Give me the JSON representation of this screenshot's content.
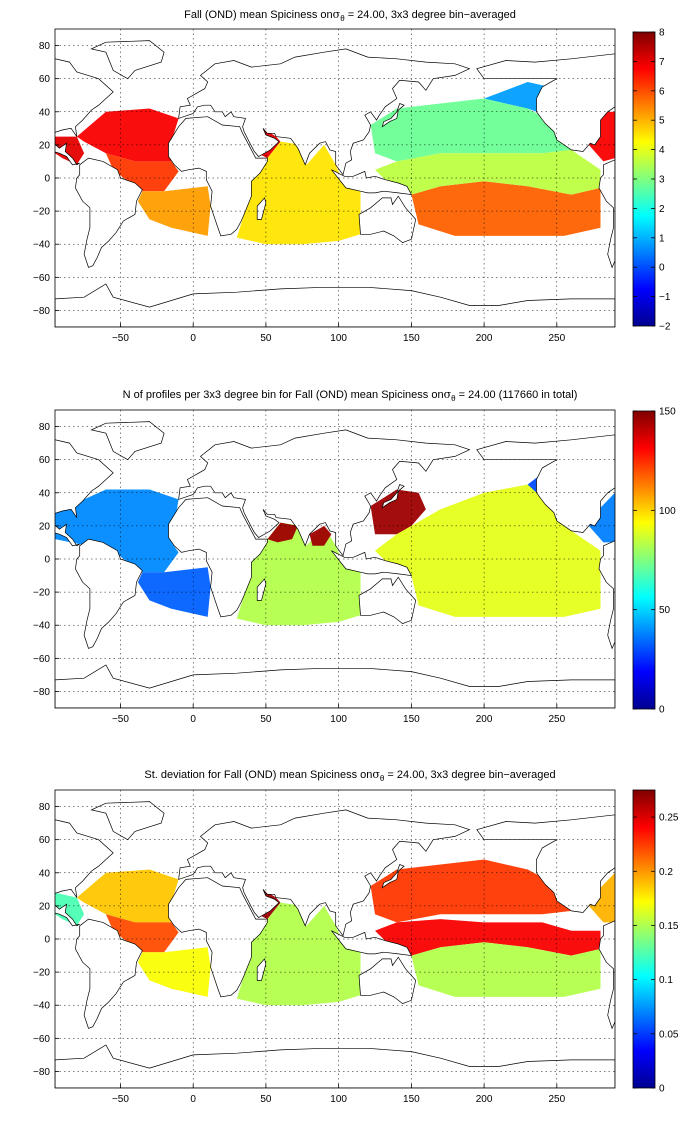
{
  "figure": {
    "panels": [
      {
        "title_main": "Fall (OND) mean Spiciness on",
        "title_sym": "σ",
        "title_sub": "θ",
        "title_rest": " = 24.00, 3x3 degree bin−averaged",
        "colorbar": {
          "ticks": [
            "8",
            "7",
            "6",
            "5",
            "4",
            "3",
            "2",
            "1",
            "0",
            "−1",
            "−2"
          ]
        }
      },
      {
        "title_main": "N of profiles per 3x3 degree bin for Fall (OND) mean Spiciness on",
        "title_sym": "σ",
        "title_sub": "θ",
        "title_rest": " = 24.00 (117660 in total)",
        "colorbar": {
          "ticks": [
            "150",
            "100",
            "50",
            "0"
          ]
        }
      },
      {
        "title_main": "St. deviation for Fall (OND) mean Spiciness on",
        "title_sym": "σ",
        "title_sub": "θ",
        "title_rest": " = 24.00, 3x3 degree bin−averaged",
        "colorbar": {
          "ticks": [
            "0.25",
            "0.2",
            "0.15",
            "0.1",
            "0.05",
            "0"
          ]
        }
      }
    ],
    "axes": {
      "xticks": [
        "−50",
        "0",
        "50",
        "100",
        "150",
        "200",
        "250"
      ],
      "yticks": [
        "80",
        "60",
        "40",
        "20",
        "0",
        "−20",
        "−40",
        "−60",
        "−80"
      ]
    }
  },
  "chart_data": [
    {
      "type": "heatmap",
      "title": "Fall (OND) mean Spiciness on σθ = 24.00, 3x3 degree bin−averaged",
      "xlim": [
        -95,
        290
      ],
      "ylim": [
        -90,
        90
      ],
      "x_ticks": [
        -50,
        0,
        50,
        100,
        150,
        200,
        250
      ],
      "y_ticks": [
        -80,
        -60,
        -40,
        -20,
        0,
        20,
        40,
        60,
        80
      ],
      "grid": true,
      "colorbar": {
        "min": -2,
        "max": 8,
        "ticks": [
          8,
          7,
          6,
          5,
          4,
          3,
          2,
          1,
          0,
          -1,
          -2
        ],
        "colormap": "jet"
      },
      "regions": [
        {
          "region": "subtropical North Atlantic",
          "value": 7.0
        },
        {
          "region": "tropical Atlantic",
          "value": 6.0
        },
        {
          "region": "Red Sea / Arabian Sea",
          "value": 7.0
        },
        {
          "region": "Indian Ocean",
          "value": 4.5
        },
        {
          "region": "western tropical Pacific",
          "value": 4.0
        },
        {
          "region": "North Pacific subtropical",
          "value": 3.0
        },
        {
          "region": "northeast Pacific",
          "value": 0.0
        },
        {
          "region": "South Pacific subtropical",
          "value": 6.5
        },
        {
          "region": "southeast Atlantic",
          "value": 4.5
        }
      ]
    },
    {
      "type": "heatmap",
      "title": "N of profiles per 3x3 degree bin for Fall (OND) mean Spiciness on σθ = 24.00 (117660 in total)",
      "xlim": [
        -95,
        290
      ],
      "ylim": [
        -90,
        90
      ],
      "x_ticks": [
        -50,
        0,
        50,
        100,
        150,
        200,
        250
      ],
      "y_ticks": [
        -80,
        -60,
        -40,
        -20,
        0,
        20,
        40,
        60,
        80
      ],
      "grid": true,
      "colorbar": {
        "min": 0,
        "max": 150,
        "ticks": [
          150,
          100,
          50,
          0
        ],
        "colormap": "jet"
      },
      "total": 117660,
      "regions": [
        {
          "region": "Atlantic",
          "value": 40
        },
        {
          "region": "Arabian Sea / Bay of Bengal",
          "value": 150
        },
        {
          "region": "Indian Ocean",
          "value": 80
        },
        {
          "region": "western North Pacific",
          "value": 150
        },
        {
          "region": "tropical Pacific",
          "value": 90
        },
        {
          "region": "Pacific margins",
          "value": 15
        }
      ]
    },
    {
      "type": "heatmap",
      "title": "St. deviation for Fall (OND) mean Spiciness on σθ = 24.00, 3x3 degree bin−averaged",
      "xlim": [
        -95,
        290
      ],
      "ylim": [
        -90,
        90
      ],
      "x_ticks": [
        -50,
        0,
        50,
        100,
        150,
        200,
        250
      ],
      "y_ticks": [
        -80,
        -60,
        -40,
        -20,
        0,
        20,
        40,
        60,
        80
      ],
      "grid": true,
      "colorbar": {
        "min": 0,
        "max": 0.275,
        "ticks": [
          0.25,
          0.2,
          0.15,
          0.1,
          0.05,
          0
        ],
        "colormap": "jet"
      },
      "regions": [
        {
          "region": "North Atlantic",
          "value": 0.2
        },
        {
          "region": "tropical Atlantic",
          "value": 0.22
        },
        {
          "region": "Red Sea / Arabian Sea",
          "value": 0.27
        },
        {
          "region": "Indian Ocean",
          "value": 0.17
        },
        {
          "region": "North Pacific",
          "value": 0.25
        },
        {
          "region": "equatorial Pacific",
          "value": 0.24
        },
        {
          "region": "South Pacific",
          "value": 0.15
        }
      ]
    }
  ]
}
